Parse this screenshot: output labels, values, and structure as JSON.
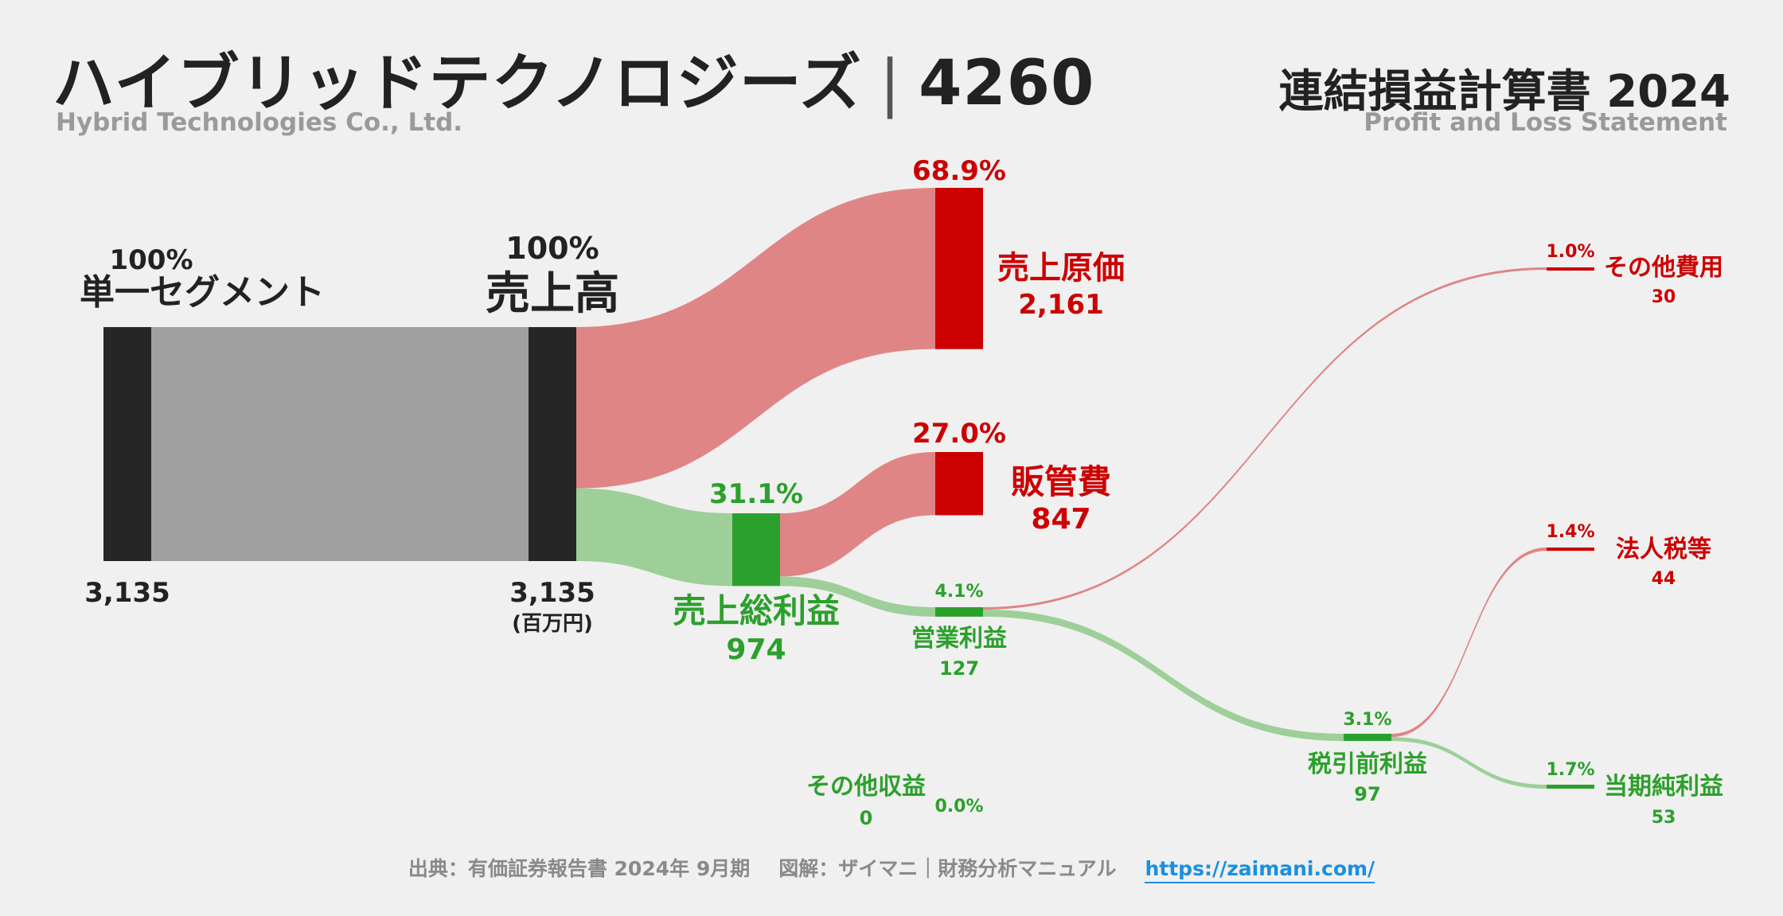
{
  "header": {
    "company_jp": "ハイブリッドテクノロジーズ",
    "separator": "|",
    "ticker": "4260",
    "company_en": "Hybrid Technologies Co., Ltd.",
    "statement_jp": "連結損益計算書 2024",
    "statement_en": "Profit and Loss Statement"
  },
  "footer": {
    "source": "出典：有価証券報告書 2024年 9月期",
    "credit": "図解：ザイマニ｜財務分析マニュアル",
    "url": "https://zaimani.com/"
  },
  "colors": {
    "dark": "#262626",
    "gray_flow": "#a0a0a0",
    "red": "#cc0000",
    "red_flow": "#e08585",
    "green": "#2ca02c",
    "green_flow": "#9ecf99",
    "text_dark": "#222222"
  },
  "chart_data": {
    "type": "sankey",
    "unit": "(百万円)",
    "nodes": [
      {
        "id": "segment",
        "label": "単一セグメント",
        "value": 3135,
        "value_label": "3,135",
        "pct": "100%",
        "kind": "source"
      },
      {
        "id": "revenue",
        "label": "売上高",
        "value": 3135,
        "value_label": "3,135",
        "pct": "100%",
        "kind": "source"
      },
      {
        "id": "cogs",
        "label": "売上原価",
        "value": 2161,
        "value_label": "2,161",
        "pct": "68.9%",
        "kind": "cost"
      },
      {
        "id": "gross",
        "label": "売上総利益",
        "value": 974,
        "value_label": "974",
        "pct": "31.1%",
        "kind": "profit"
      },
      {
        "id": "sga",
        "label": "販管費",
        "value": 847,
        "value_label": "847",
        "pct": "27.0%",
        "kind": "cost"
      },
      {
        "id": "op",
        "label": "営業利益",
        "value": 127,
        "value_label": "127",
        "pct": "4.1%",
        "kind": "profit"
      },
      {
        "id": "other_inc",
        "label": "その他収益",
        "value": 0,
        "value_label": "0",
        "pct": "0.0%",
        "kind": "profit"
      },
      {
        "id": "other_exp",
        "label": "その他費用",
        "value": 30,
        "value_label": "30",
        "pct": "1.0%",
        "kind": "cost"
      },
      {
        "id": "pretax",
        "label": "税引前利益",
        "value": 97,
        "value_label": "97",
        "pct": "3.1%",
        "kind": "profit"
      },
      {
        "id": "tax",
        "label": "法人税等",
        "value": 44,
        "value_label": "44",
        "pct": "1.4%",
        "kind": "cost"
      },
      {
        "id": "net",
        "label": "当期純利益",
        "value": 53,
        "value_label": "53",
        "pct": "1.7%",
        "kind": "profit"
      }
    ],
    "links": [
      {
        "source": "segment",
        "target": "revenue",
        "value": 3135
      },
      {
        "source": "revenue",
        "target": "cogs",
        "value": 2161
      },
      {
        "source": "revenue",
        "target": "gross",
        "value": 974
      },
      {
        "source": "gross",
        "target": "sga",
        "value": 847
      },
      {
        "source": "gross",
        "target": "op",
        "value": 127
      },
      {
        "source": "op",
        "target": "other_exp",
        "value": 30
      },
      {
        "source": "op",
        "target": "pretax",
        "value": 97
      },
      {
        "source": "pretax",
        "target": "tax",
        "value": 44
      },
      {
        "source": "pretax",
        "target": "net",
        "value": 53
      }
    ]
  }
}
